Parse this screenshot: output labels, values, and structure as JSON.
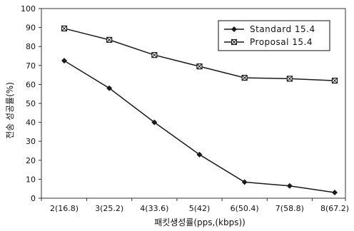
{
  "chart_data": {
    "type": "line",
    "xlabel": "패킷생성률(pps,(kbps))",
    "ylabel": "전송 성공률(%)",
    "categories": [
      "2(16.8)",
      "3(25.2)",
      "4(33.6)",
      "5(42)",
      "6(50.4)",
      "7(58.8)",
      "8(67.2)"
    ],
    "ylim": [
      0,
      100
    ],
    "yticks": [
      0,
      10,
      20,
      30,
      40,
      50,
      60,
      70,
      80,
      90,
      100
    ],
    "grid": false,
    "legend_position": "top-right",
    "series": [
      {
        "name": "Standard 15.4",
        "marker": "diamond",
        "values": [
          72.5,
          58,
          40,
          23,
          8.5,
          6.5,
          3
        ]
      },
      {
        "name": "Proposal 15.4",
        "marker": "square-cross",
        "values": [
          89.5,
          83.5,
          75.5,
          69.5,
          63.5,
          63,
          62
        ]
      }
    ],
    "colors": {
      "line": "#1a1a1a",
      "axis": "#333333",
      "background": "#ffffff"
    }
  }
}
